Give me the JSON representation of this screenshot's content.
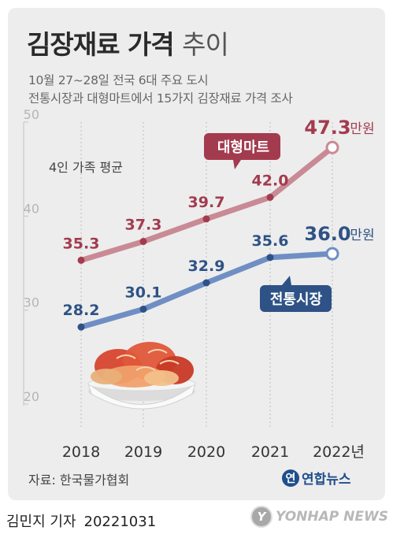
{
  "header": {
    "title_main": "김장재료 가격",
    "title_light": "추이",
    "subtitle_line1": "10월 27~28일 전국 6대 주요 도시",
    "subtitle_line2": "전통시장과 대형마트에서 15가지 김장재료 가격 조사"
  },
  "note": "4인 가족 평균",
  "unit_suffix": "만원",
  "source": "자료: 한국물가협회",
  "logo_text": "연합뉴스",
  "logo_mark": "연",
  "footer": {
    "author": "김민지 기자",
    "date": "20221031"
  },
  "agency": {
    "circle": "Y",
    "word": "YONHAP NEWS"
  },
  "chart_data": {
    "type": "line",
    "title": "김장재료 가격 추이",
    "categories": [
      "2018",
      "2019",
      "2020",
      "2021",
      "2022년"
    ],
    "ylim": [
      20,
      50
    ],
    "yticks": [
      20,
      30,
      40,
      50
    ],
    "grid": "vertical dotted",
    "series": [
      {
        "name": "대형마트",
        "values": [
          35.3,
          37.3,
          39.7,
          42.0,
          47.3
        ],
        "color": "#c98a95",
        "label_color": "#a33b4f",
        "last_label": "47.3",
        "point_labels": [
          "35.3",
          "37.3",
          "39.7",
          "42.0"
        ]
      },
      {
        "name": "전통시장",
        "values": [
          28.2,
          30.1,
          32.9,
          35.6,
          36.0
        ],
        "color": "#6f8fc4",
        "label_color": "#2e5286",
        "last_label": "36.0",
        "point_labels": [
          "28.2",
          "30.1",
          "32.9",
          "35.6"
        ]
      }
    ]
  },
  "colors": {
    "mart_dark": "#a33b4f",
    "market_dark": "#2e5286",
    "panel": "#ededed"
  }
}
